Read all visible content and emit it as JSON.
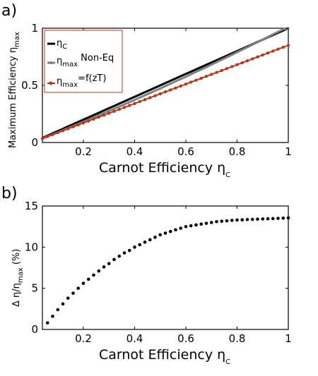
{
  "panels": {
    "a_label": "a)",
    "b_label": "b)"
  },
  "chart_data": [
    {
      "type": "line",
      "panel": "a",
      "xlabel_main": "Carnot Efficiency η",
      "xlabel_sub": "C",
      "ylabel_main": "Maximum Efficiency η",
      "ylabel_sub": "max",
      "xlim": [
        0.04,
        1.0
      ],
      "ylim": [
        0,
        1
      ],
      "xticks": [
        0.2,
        0.4,
        0.6,
        0.8,
        1
      ],
      "xtick_labels": [
        "0.2",
        "0.4",
        "0.6",
        "0.8",
        "1"
      ],
      "yticks": [
        0,
        0.5,
        1
      ],
      "ytick_labels": [
        "0",
        "0.5",
        "1"
      ],
      "grid": false,
      "legend_position": "top-left",
      "legend": [
        {
          "main": "η",
          "sub": "C",
          "suffix": ""
        },
        {
          "main": "η",
          "sub": "max",
          "suffix": " Non-Eq"
        },
        {
          "main": "η",
          "sub": "max",
          "suffix": "=f(zT)"
        }
      ],
      "x": [
        0.04,
        0.06,
        0.08,
        0.1,
        0.12,
        0.14,
        0.16,
        0.18,
        0.2,
        0.22,
        0.24,
        0.26,
        0.28,
        0.3,
        0.32,
        0.34,
        0.36,
        0.38,
        0.4,
        0.42,
        0.44,
        0.46,
        0.48,
        0.5,
        0.52,
        0.54,
        0.56,
        0.58,
        0.6,
        0.62,
        0.64,
        0.66,
        0.68,
        0.7,
        0.72,
        0.74,
        0.76,
        0.78,
        0.8,
        0.82,
        0.84,
        0.86,
        0.88,
        0.9,
        0.92,
        0.94,
        0.96,
        0.98,
        1.0
      ],
      "series": [
        {
          "name": "ηC",
          "color": "#000000",
          "values": [
            0.04,
            0.06,
            0.08,
            0.1,
            0.12,
            0.14,
            0.16,
            0.18,
            0.2,
            0.22,
            0.24,
            0.26,
            0.28,
            0.3,
            0.32,
            0.34,
            0.36,
            0.38,
            0.4,
            0.42,
            0.44,
            0.46,
            0.48,
            0.5,
            0.52,
            0.54,
            0.56,
            0.58,
            0.6,
            0.62,
            0.64,
            0.66,
            0.68,
            0.7,
            0.72,
            0.74,
            0.76,
            0.78,
            0.8,
            0.82,
            0.84,
            0.86,
            0.88,
            0.9,
            0.92,
            0.94,
            0.96,
            0.98,
            1.0
          ]
        },
        {
          "name": "ηmax Non-Eq",
          "color": "#808080",
          "values": [
            0.035,
            0.053,
            0.071,
            0.089,
            0.107,
            0.126,
            0.144,
            0.163,
            0.181,
            0.2,
            0.219,
            0.238,
            0.257,
            0.276,
            0.295,
            0.315,
            0.334,
            0.354,
            0.373,
            0.393,
            0.413,
            0.433,
            0.453,
            0.473,
            0.494,
            0.514,
            0.535,
            0.555,
            0.576,
            0.597,
            0.618,
            0.639,
            0.66,
            0.682,
            0.703,
            0.725,
            0.746,
            0.768,
            0.79,
            0.812,
            0.834,
            0.856,
            0.878,
            0.901,
            0.923,
            0.946,
            0.968,
            0.991,
            1.0
          ]
        },
        {
          "name": "ηmax=f(zT)",
          "color": "#b5391b",
          "values": [
            0.035,
            0.052,
            0.069,
            0.086,
            0.103,
            0.12,
            0.137,
            0.154,
            0.171,
            0.188,
            0.205,
            0.222,
            0.239,
            0.256,
            0.273,
            0.29,
            0.307,
            0.324,
            0.341,
            0.358,
            0.375,
            0.392,
            0.409,
            0.426,
            0.443,
            0.46,
            0.477,
            0.494,
            0.511,
            0.528,
            0.545,
            0.562,
            0.579,
            0.596,
            0.613,
            0.63,
            0.647,
            0.664,
            0.681,
            0.698,
            0.715,
            0.732,
            0.749,
            0.766,
            0.783,
            0.8,
            0.817,
            0.834,
            0.85
          ]
        }
      ]
    },
    {
      "type": "scatter",
      "panel": "b",
      "xlabel_main": "Carnot Efficiency η",
      "xlabel_sub": "C",
      "ylabel_main": "Δ η/η",
      "ylabel_sub": "max",
      "ylabel_suffix": " (%)",
      "xlim": [
        0.04,
        1.0
      ],
      "ylim": [
        0,
        15
      ],
      "xticks": [
        0.2,
        0.4,
        0.6,
        0.8,
        1
      ],
      "xtick_labels": [
        "0.2",
        "0.4",
        "0.6",
        "0.8",
        "1"
      ],
      "yticks": [
        0,
        5,
        10,
        15
      ],
      "ytick_labels": [
        "0",
        "5",
        "10",
        "15"
      ],
      "grid": false,
      "color": "#000000",
      "x": [
        0.06,
        0.08,
        0.1,
        0.12,
        0.14,
        0.16,
        0.18,
        0.2,
        0.22,
        0.24,
        0.26,
        0.28,
        0.3,
        0.32,
        0.34,
        0.36,
        0.38,
        0.4,
        0.42,
        0.44,
        0.46,
        0.48,
        0.5,
        0.52,
        0.54,
        0.56,
        0.58,
        0.6,
        0.62,
        0.64,
        0.66,
        0.68,
        0.7,
        0.72,
        0.74,
        0.76,
        0.78,
        0.8,
        0.82,
        0.84,
        0.86,
        0.88,
        0.9,
        0.92,
        0.94,
        0.96,
        0.98,
        1.0
      ],
      "y": [
        0.8,
        1.6,
        2.4,
        3.1,
        3.8,
        4.4,
        5.0,
        5.6,
        6.1,
        6.6,
        7.1,
        7.6,
        8.0,
        8.5,
        8.9,
        9.3,
        9.6,
        10.0,
        10.3,
        10.6,
        10.9,
        11.2,
        11.5,
        11.7,
        11.9,
        12.1,
        12.3,
        12.5,
        12.6,
        12.7,
        12.8,
        12.9,
        13.0,
        13.1,
        13.15,
        13.2,
        13.25,
        13.3,
        13.32,
        13.35,
        13.37,
        13.4,
        13.42,
        13.45,
        13.47,
        13.5,
        13.52,
        13.55
      ]
    }
  ]
}
